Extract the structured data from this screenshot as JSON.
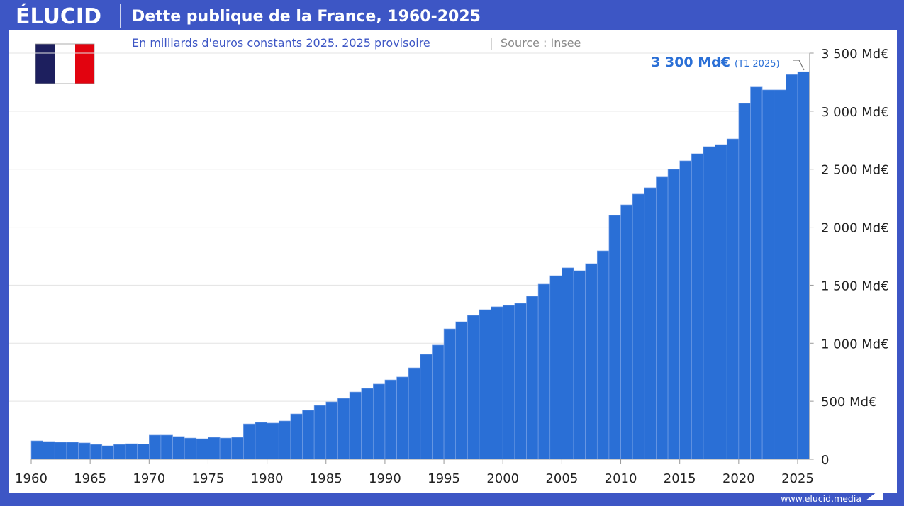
{
  "brand": {
    "logo": "ÉLUCID",
    "url": "www.elucid.media"
  },
  "colors": {
    "frame": "#3d56c5",
    "bar": "#2a6fd6",
    "bar_edge": "#7fa6e8",
    "annotation": "#2a6fd6",
    "subtitle": "#3d56c5"
  },
  "icons": {
    "flag": "france-flag-icon",
    "logo_mark": "elucid-swoosh-icon"
  },
  "chart_data": {
    "type": "bar",
    "title": "Dette publique de la France, 1960-2025",
    "subtitle": "En milliards d'euros constants 2025. 2025 provisoire",
    "source": "Source : Insee",
    "xlabel": "",
    "ylabel": "",
    "unit": "Md€",
    "ylim": [
      0,
      3500
    ],
    "grid": true,
    "y_axis_side": "right",
    "yticks": [
      0,
      500,
      1000,
      1500,
      2000,
      2500,
      3000,
      3500
    ],
    "ytick_labels": [
      "0",
      "500 Md€",
      "1 000 Md€",
      "1 500 Md€",
      "2 000 Md€",
      "2 500 Md€",
      "3 000 Md€",
      "3 500 Md€"
    ],
    "xtick_labels": [
      "1960",
      "1965",
      "1970",
      "1975",
      "1980",
      "1985",
      "1990",
      "1995",
      "2000",
      "2005",
      "2010",
      "2015",
      "2020",
      "2025"
    ],
    "categories": [
      1960,
      1961,
      1962,
      1963,
      1964,
      1965,
      1966,
      1967,
      1968,
      1969,
      1970,
      1971,
      1972,
      1973,
      1974,
      1975,
      1976,
      1977,
      1978,
      1979,
      1980,
      1981,
      1982,
      1983,
      1984,
      1985,
      1986,
      1987,
      1988,
      1989,
      1990,
      1991,
      1992,
      1993,
      1994,
      1995,
      1996,
      1997,
      1998,
      1999,
      2000,
      2001,
      2002,
      2003,
      2004,
      2005,
      2006,
      2007,
      2008,
      2009,
      2010,
      2011,
      2012,
      2013,
      2014,
      2015,
      2016,
      2017,
      2018,
      2019,
      2020,
      2021,
      2022,
      2023,
      2024,
      2025
    ],
    "values": [
      159,
      153,
      147,
      147,
      141,
      128,
      116,
      128,
      134,
      130,
      208,
      208,
      196,
      183,
      177,
      189,
      183,
      189,
      305,
      318,
      312,
      330,
      391,
      422,
      464,
      495,
      525,
      580,
      611,
      648,
      684,
      709,
      788,
      904,
      984,
      1124,
      1185,
      1240,
      1289,
      1314,
      1326,
      1344,
      1405,
      1509,
      1582,
      1650,
      1625,
      1686,
      1796,
      2102,
      2193,
      2285,
      2340,
      2432,
      2499,
      2572,
      2633,
      2694,
      2712,
      2761,
      3067,
      3208,
      3183,
      3183,
      3315,
      3340
    ],
    "annotation": {
      "value_label": "3 300 Md€",
      "note": "(T1 2025)",
      "category": 2025
    }
  }
}
